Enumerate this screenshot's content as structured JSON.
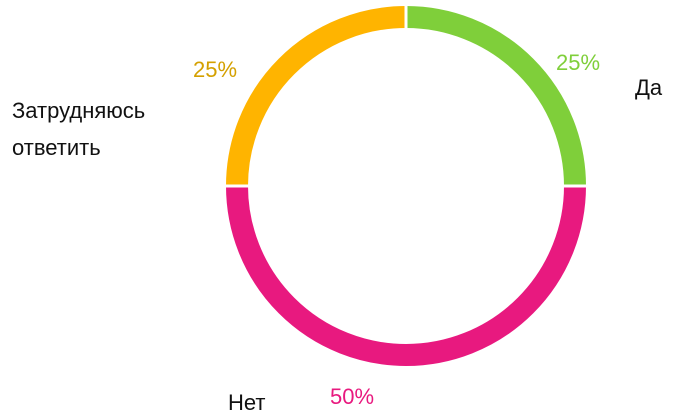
{
  "chart_data": {
    "type": "pie",
    "title": "",
    "slices": [
      {
        "label": "Да",
        "value": 25,
        "percent_label": "25%",
        "color": "#7fcf3a"
      },
      {
        "label": "Нет",
        "value": 50,
        "percent_label": "50%",
        "color": "#e8197f"
      },
      {
        "label": "Затрудняюсь ответить",
        "label_lines": [
          "Затрудняюсь",
          "ответить"
        ],
        "value": 25,
        "percent_label": "25%",
        "color": "#ffb400"
      }
    ],
    "donut": true,
    "start": "top",
    "direction": "clockwise",
    "colors": {
      "separator": "#ffffff",
      "label_text": "#111111"
    }
  }
}
